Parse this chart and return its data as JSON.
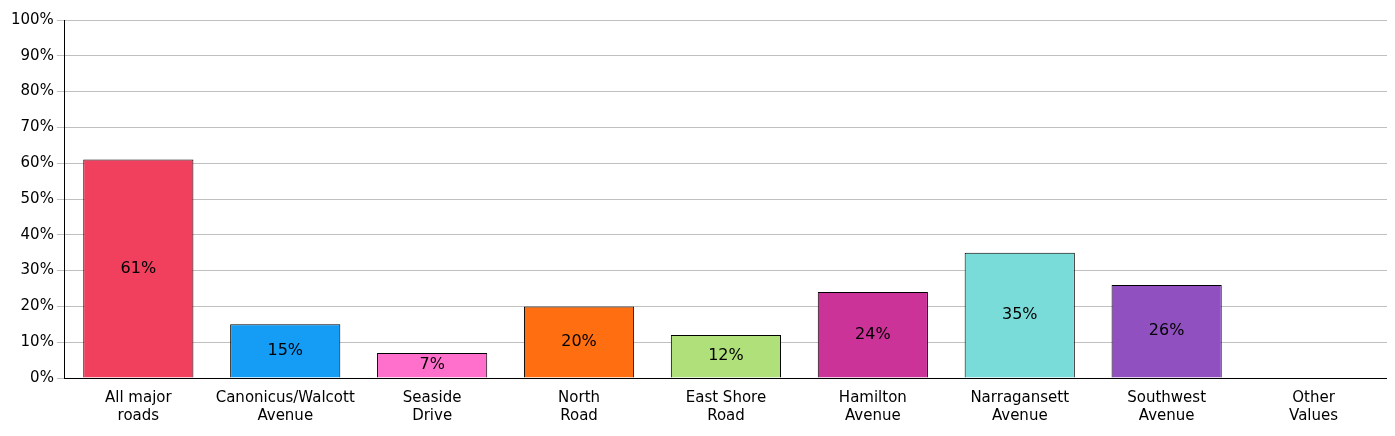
{
  "chart_data": {
    "type": "bar",
    "categories": [
      "All major roads",
      "Canonicus/Walcott Avenue",
      "Seaside Drive",
      "North Road",
      "East Shore Road",
      "Hamilton Avenue",
      "Narragansett Avenue",
      "Southwest Avenue",
      "Other Values"
    ],
    "values": [
      61,
      15,
      7,
      20,
      12,
      24,
      35,
      26,
      null
    ],
    "colors": [
      "#f0405e",
      "#159cf5",
      "#ff70cc",
      "#ff6e10",
      "#b0e07a",
      "#cc3399",
      "#7adcd8",
      "#9050c0",
      "#999999"
    ],
    "value_labels": [
      "61%",
      "15%",
      "7%",
      "20%",
      "12%",
      "24%",
      "35%",
      "26%",
      null
    ],
    "ylim": [
      0,
      100
    ],
    "yticks": [
      {
        "value": 0,
        "label": "0%"
      },
      {
        "value": 10,
        "label": "10%"
      },
      {
        "value": 20,
        "label": "20%"
      },
      {
        "value": 30,
        "label": "30%"
      },
      {
        "value": 40,
        "label": "40%"
      },
      {
        "value": 50,
        "label": "50%"
      },
      {
        "value": 60,
        "label": "60%"
      },
      {
        "value": 70,
        "label": "70%"
      },
      {
        "value": 80,
        "label": "80%"
      },
      {
        "value": 90,
        "label": "90%"
      },
      {
        "value": 100,
        "label": "100%"
      }
    ],
    "grid": "y",
    "legend": false
  }
}
